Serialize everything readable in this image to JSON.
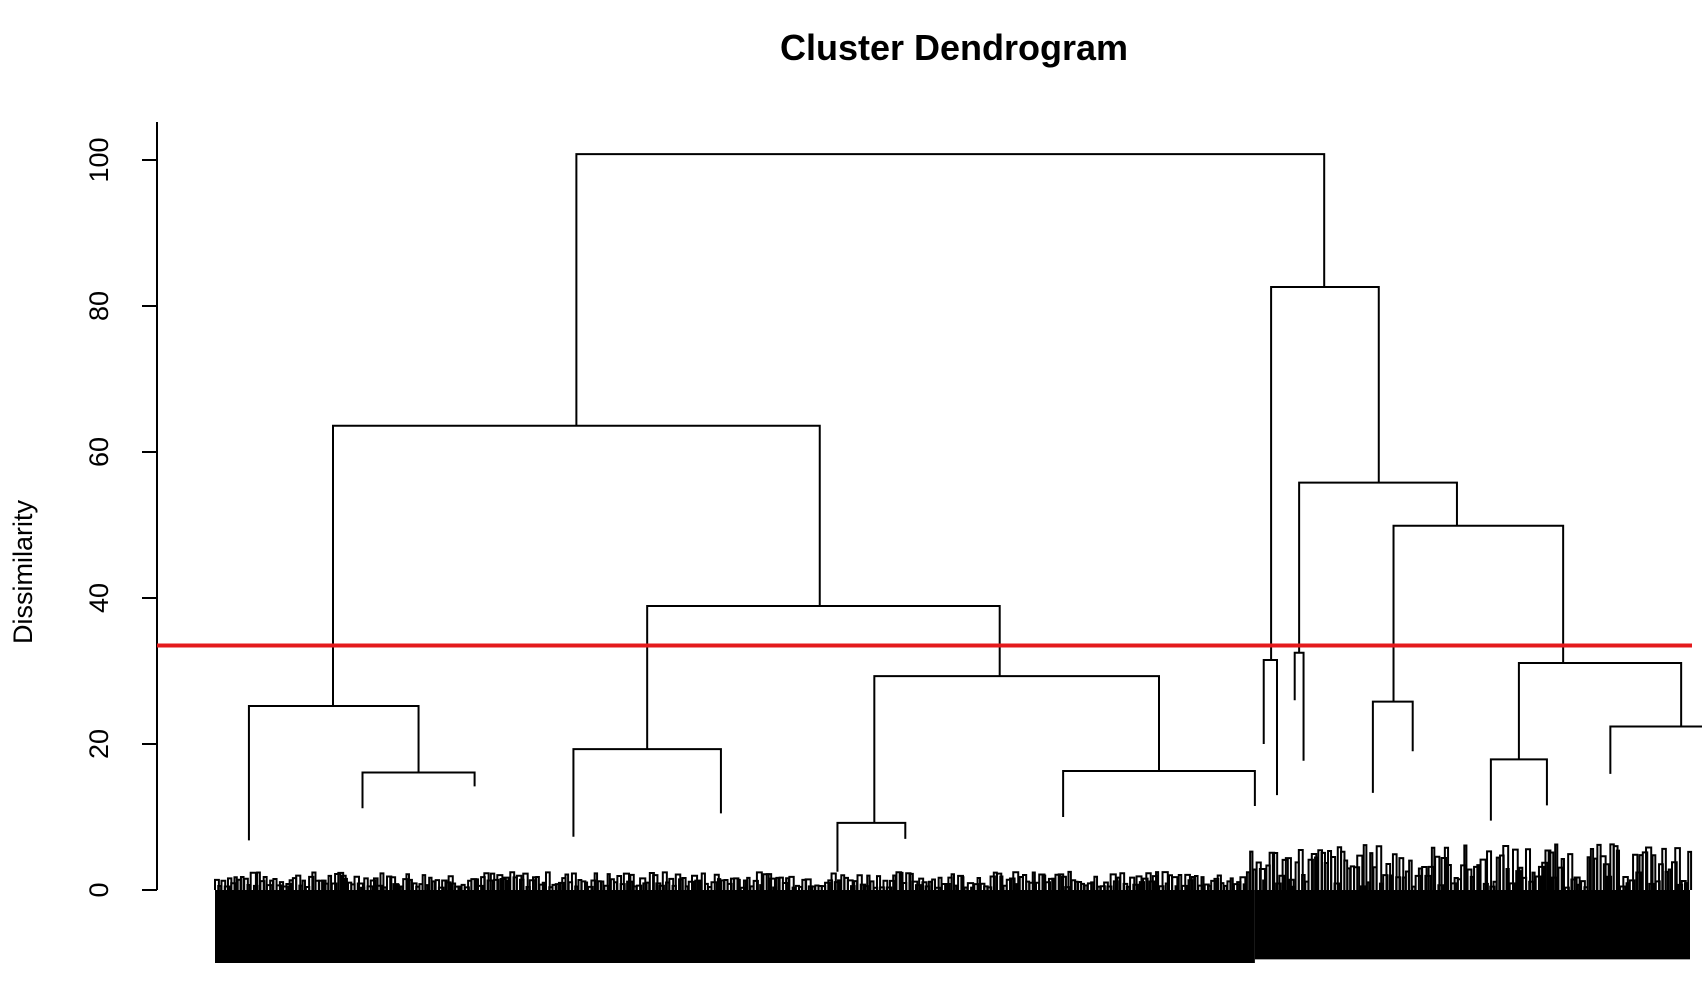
{
  "chart_data": {
    "type": "dendrogram",
    "title": "Cluster Dendrogram",
    "ylabel": "Dissimilarity",
    "xlabel": "",
    "ylim": [
      0,
      100
    ],
    "yticks": [
      0,
      20,
      40,
      60,
      80,
      100
    ],
    "ytick_labels": [
      "0",
      "20",
      "40",
      "60",
      "80",
      "100"
    ],
    "cut_line": {
      "height": 33.5,
      "color": "#e41a1c"
    },
    "leaf_span": [
      0,
      1000
    ],
    "dense_leaf_regions": [
      {
        "x_start": 0,
        "x_end": 400,
        "bottom": -10.0
      },
      {
        "x_start": 400,
        "x_end": 705,
        "bottom": -10.0
      },
      {
        "x_start": 705,
        "x_end": 1000,
        "bottom": -9.5
      }
    ],
    "merges": [
      {
        "left_x": 245,
        "right_x": 752,
        "height": 100.8,
        "left_child": 63.6,
        "right_child": 82.6
      },
      {
        "left_x": 80,
        "right_x": 410,
        "height": 63.6,
        "left_child": 25.2,
        "right_child": 38.9
      },
      {
        "left_x": 716,
        "right_x": 789,
        "height": 82.6,
        "left_child": 31.5,
        "right_child": 55.8
      },
      {
        "left_x": 23,
        "right_x": 138,
        "height": 25.2,
        "left_child": 6.8,
        "right_child": 16.1
      },
      {
        "left_x": 293,
        "right_x": 532,
        "height": 38.9,
        "left_child": 19.3,
        "right_child": 29.3
      },
      {
        "left_x": 735,
        "right_x": 842,
        "height": 55.8,
        "left_child": 32.5,
        "right_child": 49.9
      },
      {
        "left_x": 799,
        "right_x": 914,
        "height": 49.9,
        "left_child": 25.8,
        "right_child": 31.1
      },
      {
        "left_x": 243,
        "right_x": 343,
        "height": 19.3,
        "left_child": 7.3,
        "right_child": 10.5
      },
      {
        "left_x": 447,
        "right_x": 640,
        "height": 29.3,
        "left_child": 9.2,
        "right_child": 16.3
      },
      {
        "left_x": 884,
        "right_x": 994,
        "height": 31.1,
        "left_child": 17.9,
        "right_child": 22.4
      },
      {
        "left_x": 100,
        "right_x": 176,
        "height": 16.1,
        "left_child": 11.2,
        "right_child": 14.2
      },
      {
        "left_x": 575,
        "right_x": 705,
        "height": 16.3,
        "left_child": 10.0,
        "right_child": 11.5
      },
      {
        "left_x": 946,
        "right_x": 1042,
        "height": 22.4,
        "left_child": 15.9,
        "right_child": 17.6
      },
      {
        "left_x": 785,
        "right_x": 812,
        "height": 25.8,
        "left_child": 13.3,
        "right_child": 19.0
      },
      {
        "left_x": 711,
        "right_x": 720,
        "height": 31.5,
        "left_child": 20.0,
        "right_child": 13.0
      },
      {
        "left_x": 732,
        "right_x": 738,
        "height": 32.5,
        "left_child": 26.0,
        "right_child": 17.7
      },
      {
        "left_x": 865,
        "right_x": 903,
        "height": 17.9,
        "left_child": 9.5,
        "right_child": 11.6
      },
      {
        "left_x": 422,
        "right_x": 468,
        "height": 9.2,
        "left_child": 2.5,
        "right_child": 7.0
      }
    ]
  }
}
